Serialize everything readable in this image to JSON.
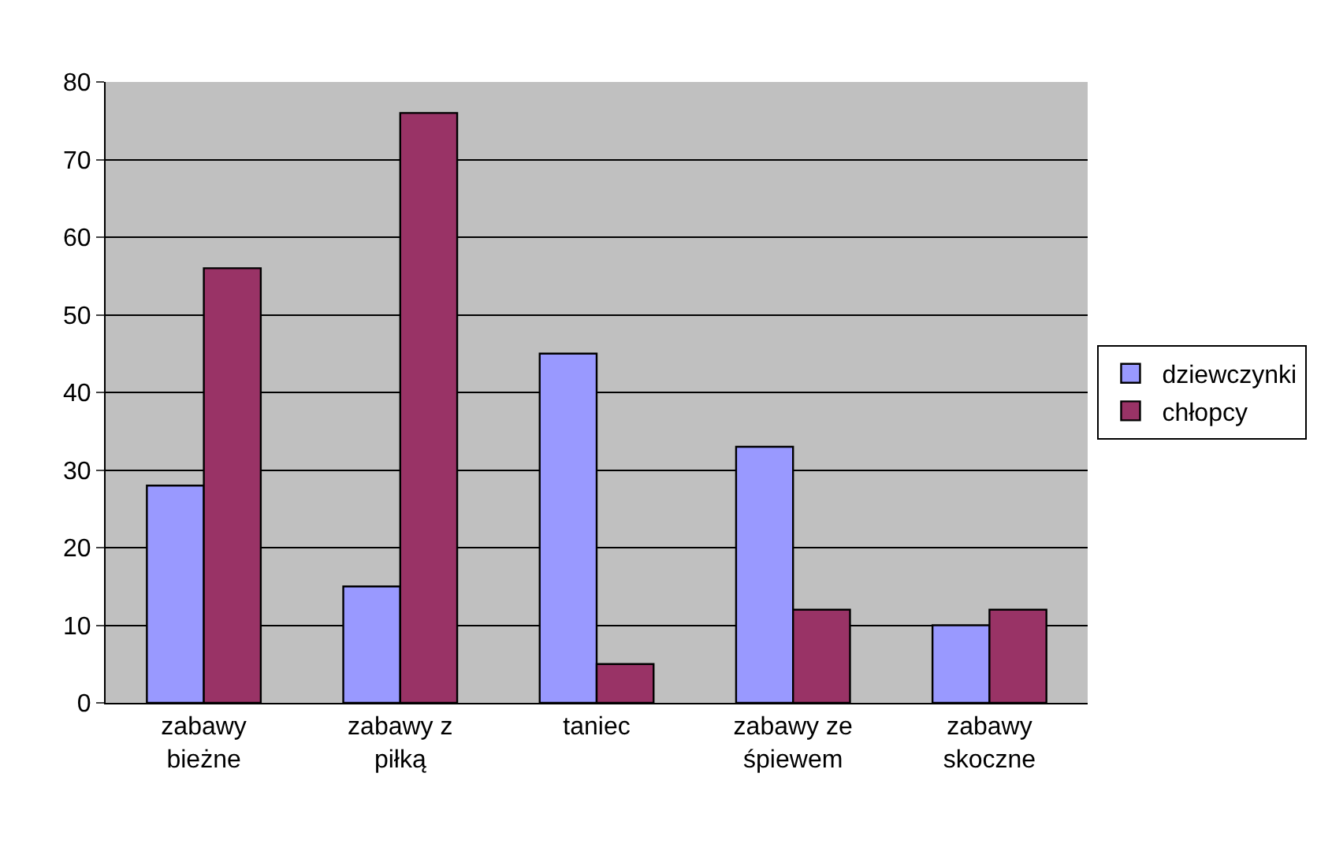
{
  "chart_data": {
    "type": "bar",
    "categories": [
      "zabawy bieżne",
      "zabawy z piłką",
      "taniec",
      "zabawy ze śpiewem",
      "zabawy skoczne"
    ],
    "series": [
      {
        "name": "dziewczynki",
        "color": "#9999ff",
        "values": [
          28,
          15,
          45,
          33,
          10
        ]
      },
      {
        "name": "chłopcy",
        "color": "#993366",
        "values": [
          56,
          76,
          5,
          12,
          12
        ]
      }
    ],
    "ylim": [
      0,
      80
    ],
    "yticks": [
      0,
      10,
      20,
      30,
      40,
      50,
      60,
      70,
      80
    ],
    "grid": "y",
    "legend": "right"
  }
}
